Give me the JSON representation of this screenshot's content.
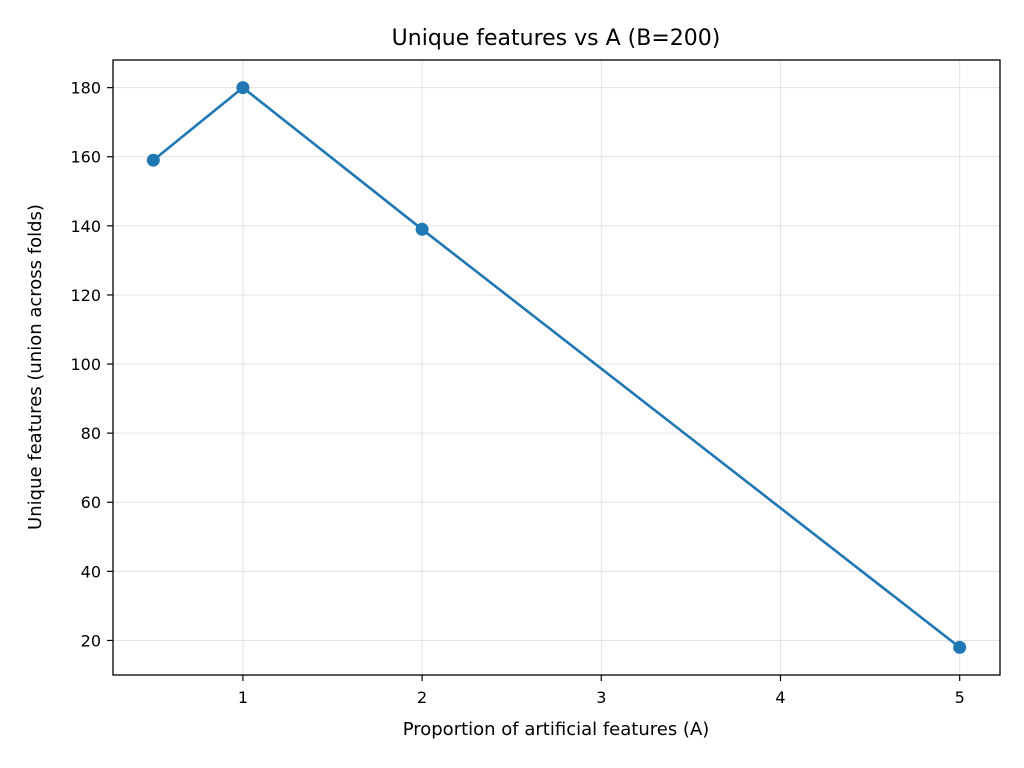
{
  "chart_data": {
    "type": "line",
    "title": "Unique features vs A (B=200)",
    "xlabel": "Proportion of artificial features (A)",
    "ylabel": "Unique features (union across folds)",
    "xlim": [
      0.275,
      5.225
    ],
    "ylim": [
      10,
      188
    ],
    "x_ticks": [
      1,
      2,
      3,
      4,
      5
    ],
    "y_ticks": [
      20,
      40,
      60,
      80,
      100,
      120,
      140,
      160,
      180
    ],
    "grid": true,
    "series": [
      {
        "x": [
          0.5,
          1,
          2,
          5
        ],
        "y": [
          159,
          180,
          139,
          18
        ],
        "color": "#1f77b4",
        "marker": "circle"
      }
    ]
  }
}
